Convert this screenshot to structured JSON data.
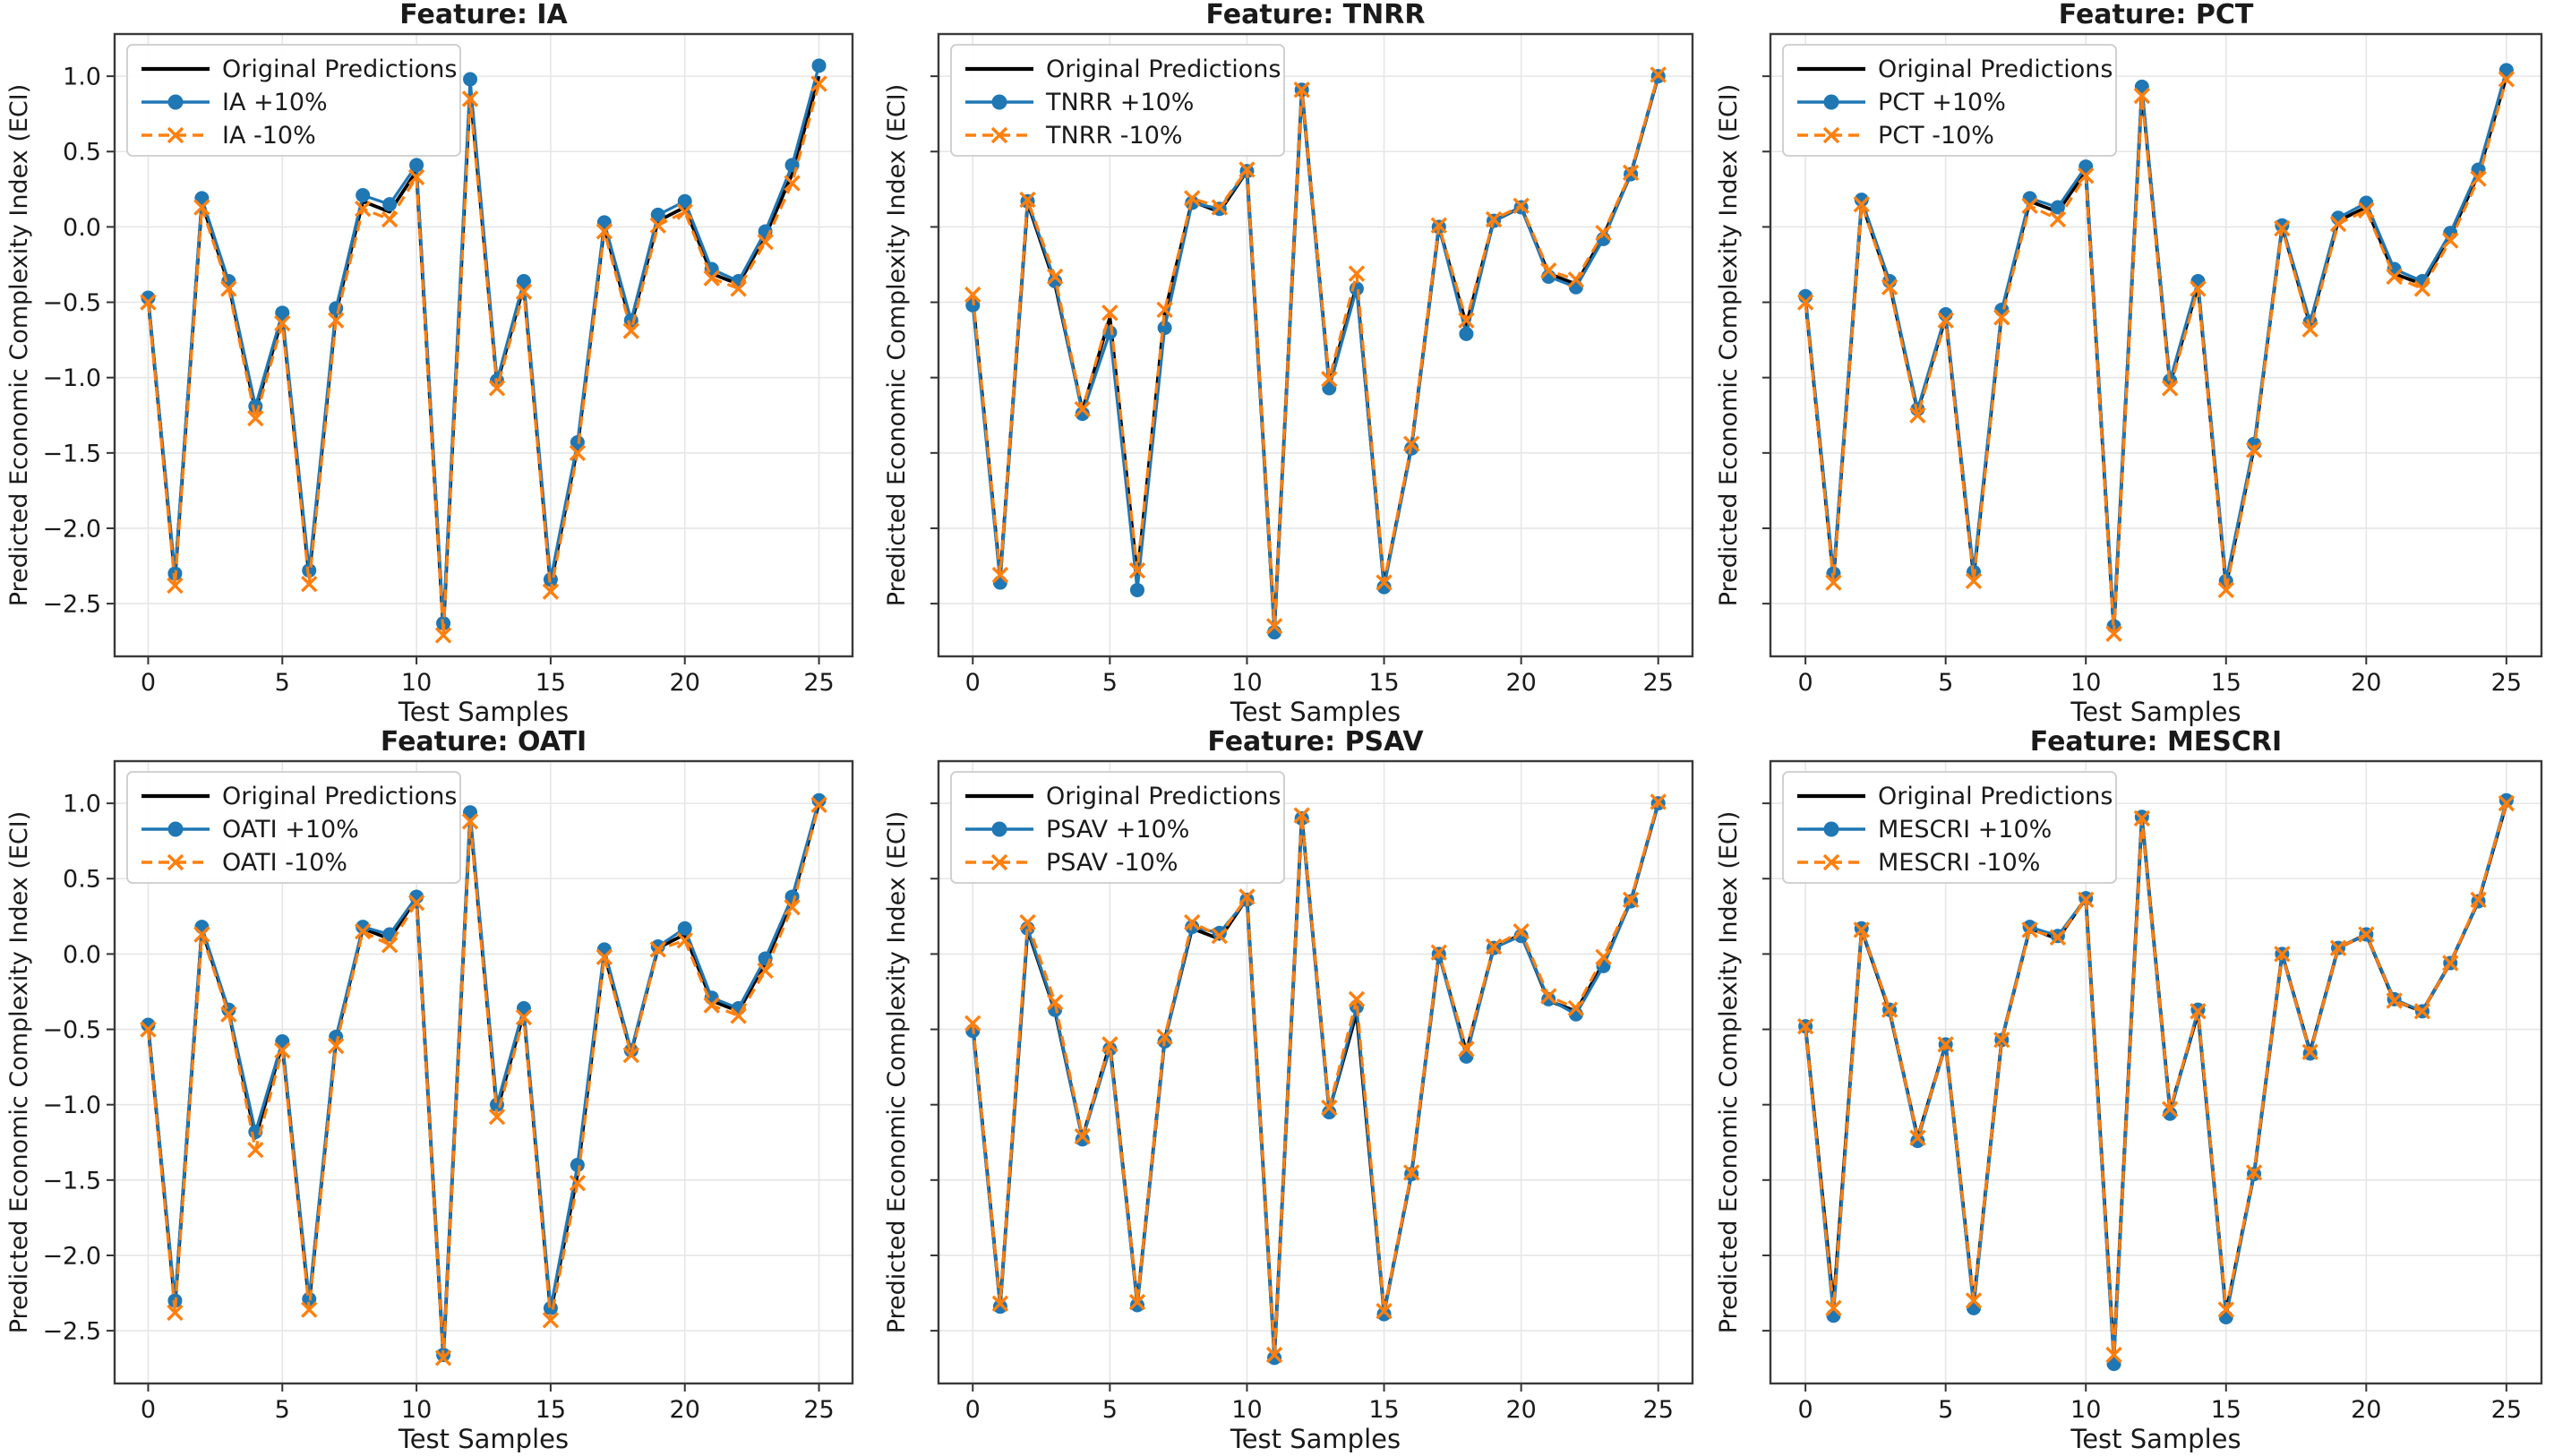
{
  "figure_title": "",
  "chart_data": [
    {
      "type": "line",
      "title": "Feature: IA",
      "xlabel": "Test Samples",
      "ylabel": "Predicted Economic Complexity Index (ECI)",
      "x": [
        0,
        1,
        2,
        3,
        4,
        5,
        6,
        7,
        8,
        9,
        10,
        11,
        12,
        13,
        14,
        15,
        16,
        17,
        18,
        19,
        20,
        21,
        22,
        23,
        24,
        25
      ],
      "xlim": [
        -1.25,
        26.25
      ],
      "ylim": [
        -2.85,
        1.28
      ],
      "xticks": [
        0,
        5,
        10,
        15,
        20,
        25
      ],
      "xtick_labels": [
        "0",
        "5",
        "10",
        "15",
        "20",
        "25"
      ],
      "yticks": [
        1.0,
        0.5,
        0.0,
        -0.5,
        -1.0,
        -1.5,
        -2.0,
        -2.5
      ],
      "ytick_labels": [
        "1.0",
        "0.5",
        "0.0",
        "−0.5",
        "−1.0",
        "−1.5",
        "−2.0",
        "−2.5"
      ],
      "show_ytick_labels": true,
      "grid": true,
      "legend_position": "upper left",
      "series": [
        {
          "name": "Original Predictions",
          "color": "#000000",
          "linestyle": "solid",
          "marker": "none",
          "values": [
            -0.48,
            -2.33,
            0.16,
            -0.38,
            -1.22,
            -0.6,
            -2.32,
            -0.57,
            0.17,
            0.1,
            0.37,
            -2.67,
            0.91,
            -1.04,
            -0.39,
            -2.38,
            -1.46,
            0.0,
            -0.65,
            0.04,
            0.13,
            -0.31,
            -0.38,
            -0.06,
            0.35,
            1.0
          ]
        },
        {
          "name": "IA +10%",
          "color": "#1f77b4",
          "linestyle": "solid",
          "marker": "circle",
          "values": [
            -0.47,
            -2.3,
            0.19,
            -0.36,
            -1.19,
            -0.57,
            -2.28,
            -0.54,
            0.21,
            0.15,
            0.41,
            -2.63,
            0.98,
            -1.02,
            -0.36,
            -2.34,
            -1.43,
            0.03,
            -0.62,
            0.08,
            0.17,
            -0.28,
            -0.36,
            -0.03,
            0.41,
            1.07
          ]
        },
        {
          "name": "IA -10%",
          "color": "#ff7f0e",
          "linestyle": "dashed",
          "marker": "x",
          "values": [
            -0.5,
            -2.38,
            0.13,
            -0.41,
            -1.27,
            -0.64,
            -2.37,
            -0.62,
            0.12,
            0.05,
            0.33,
            -2.71,
            0.85,
            -1.07,
            -0.43,
            -2.42,
            -1.5,
            -0.03,
            -0.69,
            0.01,
            0.1,
            -0.34,
            -0.41,
            -0.1,
            0.29,
            0.95
          ]
        }
      ]
    },
    {
      "type": "line",
      "title": "Feature: TNRR",
      "xlabel": "Test Samples",
      "ylabel": "Predicted Economic Complexity Index (ECI)",
      "x": [
        0,
        1,
        2,
        3,
        4,
        5,
        6,
        7,
        8,
        9,
        10,
        11,
        12,
        13,
        14,
        15,
        16,
        17,
        18,
        19,
        20,
        21,
        22,
        23,
        24,
        25
      ],
      "xlim": [
        -1.25,
        26.25
      ],
      "ylim": [
        -2.85,
        1.28
      ],
      "xticks": [
        0,
        5,
        10,
        15,
        20,
        25
      ],
      "xtick_labels": [
        "0",
        "5",
        "10",
        "15",
        "20",
        "25"
      ],
      "yticks": [
        1.0,
        0.5,
        0.0,
        -0.5,
        -1.0,
        -1.5,
        -2.0,
        -2.5
      ],
      "ytick_labels": [
        "1.0",
        "0.5",
        "0.0",
        "−0.5",
        "−1.0",
        "−1.5",
        "−2.0",
        "−2.5"
      ],
      "show_ytick_labels": false,
      "grid": true,
      "legend_position": "upper left",
      "series": [
        {
          "name": "Original Predictions",
          "color": "#000000",
          "linestyle": "solid",
          "marker": "none",
          "values": [
            -0.48,
            -2.33,
            0.16,
            -0.38,
            -1.22,
            -0.6,
            -2.32,
            -0.57,
            0.17,
            0.1,
            0.37,
            -2.67,
            0.91,
            -1.04,
            -0.39,
            -2.38,
            -1.46,
            0.0,
            -0.65,
            0.04,
            0.13,
            -0.31,
            -0.38,
            -0.06,
            0.35,
            1.0
          ]
        },
        {
          "name": "TNRR +10%",
          "color": "#1f77b4",
          "linestyle": "solid",
          "marker": "circle",
          "values": [
            -0.52,
            -2.36,
            0.17,
            -0.36,
            -1.24,
            -0.7,
            -2.41,
            -0.67,
            0.16,
            0.12,
            0.37,
            -2.69,
            0.91,
            -1.07,
            -0.41,
            -2.39,
            -1.47,
            0.0,
            -0.71,
            0.04,
            0.13,
            -0.33,
            -0.4,
            -0.08,
            0.35,
            1.0
          ]
        },
        {
          "name": "TNRR -10%",
          "color": "#ff7f0e",
          "linestyle": "dashed",
          "marker": "x",
          "values": [
            -0.45,
            -2.31,
            0.18,
            -0.33,
            -1.21,
            -0.57,
            -2.28,
            -0.55,
            0.19,
            0.13,
            0.38,
            -2.65,
            0.91,
            -1.01,
            -0.31,
            -2.36,
            -1.44,
            0.01,
            -0.62,
            0.05,
            0.14,
            -0.29,
            -0.35,
            -0.04,
            0.36,
            1.01
          ]
        }
      ]
    },
    {
      "type": "line",
      "title": "Feature: PCT",
      "xlabel": "Test Samples",
      "ylabel": "Predicted Economic Complexity Index (ECI)",
      "x": [
        0,
        1,
        2,
        3,
        4,
        5,
        6,
        7,
        8,
        9,
        10,
        11,
        12,
        13,
        14,
        15,
        16,
        17,
        18,
        19,
        20,
        21,
        22,
        23,
        24,
        25
      ],
      "xlim": [
        -1.25,
        26.25
      ],
      "ylim": [
        -2.85,
        1.28
      ],
      "xticks": [
        0,
        5,
        10,
        15,
        20,
        25
      ],
      "xtick_labels": [
        "0",
        "5",
        "10",
        "15",
        "20",
        "25"
      ],
      "yticks": [
        1.0,
        0.5,
        0.0,
        -0.5,
        -1.0,
        -1.5,
        -2.0,
        -2.5
      ],
      "ytick_labels": [
        "1.0",
        "0.5",
        "0.0",
        "−0.5",
        "−1.0",
        "−1.5",
        "−2.0",
        "−2.5"
      ],
      "show_ytick_labels": false,
      "grid": true,
      "legend_position": "upper left",
      "series": [
        {
          "name": "Original Predictions",
          "color": "#000000",
          "linestyle": "solid",
          "marker": "none",
          "values": [
            -0.48,
            -2.33,
            0.16,
            -0.38,
            -1.22,
            -0.6,
            -2.32,
            -0.57,
            0.17,
            0.1,
            0.37,
            -2.67,
            0.91,
            -1.04,
            -0.39,
            -2.38,
            -1.46,
            0.0,
            -0.65,
            0.04,
            0.13,
            -0.31,
            -0.38,
            -0.06,
            0.35,
            1.0
          ]
        },
        {
          "name": "PCT +10%",
          "color": "#1f77b4",
          "linestyle": "solid",
          "marker": "circle",
          "values": [
            -0.46,
            -2.3,
            0.18,
            -0.36,
            -1.21,
            -0.58,
            -2.29,
            -0.55,
            0.19,
            0.13,
            0.4,
            -2.65,
            0.93,
            -1.02,
            -0.36,
            -2.35,
            -1.44,
            0.01,
            -0.63,
            0.06,
            0.16,
            -0.28,
            -0.36,
            -0.04,
            0.38,
            1.04
          ]
        },
        {
          "name": "PCT -10%",
          "color": "#ff7f0e",
          "linestyle": "dashed",
          "marker": "x",
          "values": [
            -0.5,
            -2.36,
            0.15,
            -0.4,
            -1.25,
            -0.62,
            -2.35,
            -0.6,
            0.14,
            0.05,
            0.34,
            -2.7,
            0.87,
            -1.07,
            -0.41,
            -2.41,
            -1.48,
            -0.01,
            -0.68,
            0.02,
            0.11,
            -0.33,
            -0.41,
            -0.09,
            0.32,
            0.98
          ]
        }
      ]
    },
    {
      "type": "line",
      "title": "Feature: OATI",
      "xlabel": "Test Samples",
      "ylabel": "Predicted Economic Complexity Index (ECI)",
      "x": [
        0,
        1,
        2,
        3,
        4,
        5,
        6,
        7,
        8,
        9,
        10,
        11,
        12,
        13,
        14,
        15,
        16,
        17,
        18,
        19,
        20,
        21,
        22,
        23,
        24,
        25
      ],
      "xlim": [
        -1.25,
        26.25
      ],
      "ylim": [
        -2.85,
        1.28
      ],
      "xticks": [
        0,
        5,
        10,
        15,
        20,
        25
      ],
      "xtick_labels": [
        "0",
        "5",
        "10",
        "15",
        "20",
        "25"
      ],
      "yticks": [
        1.0,
        0.5,
        0.0,
        -0.5,
        -1.0,
        -1.5,
        -2.0,
        -2.5
      ],
      "ytick_labels": [
        "1.0",
        "0.5",
        "0.0",
        "−0.5",
        "−1.0",
        "−1.5",
        "−2.0",
        "−2.5"
      ],
      "show_ytick_labels": true,
      "grid": true,
      "legend_position": "upper left",
      "series": [
        {
          "name": "Original Predictions",
          "color": "#000000",
          "linestyle": "solid",
          "marker": "none",
          "values": [
            -0.48,
            -2.33,
            0.16,
            -0.38,
            -1.22,
            -0.6,
            -2.32,
            -0.57,
            0.17,
            0.1,
            0.37,
            -2.67,
            0.91,
            -1.04,
            -0.39,
            -2.38,
            -1.46,
            0.0,
            -0.65,
            0.04,
            0.13,
            -0.31,
            -0.38,
            -0.06,
            0.35,
            1.0
          ]
        },
        {
          "name": "OATI +10%",
          "color": "#1f77b4",
          "linestyle": "solid",
          "marker": "circle",
          "values": [
            -0.47,
            -2.3,
            0.18,
            -0.37,
            -1.18,
            -0.58,
            -2.29,
            -0.55,
            0.18,
            0.13,
            0.38,
            -2.66,
            0.94,
            -1.0,
            -0.36,
            -2.35,
            -1.4,
            0.03,
            -0.64,
            0.05,
            0.17,
            -0.29,
            -0.36,
            -0.03,
            0.38,
            1.02
          ]
        },
        {
          "name": "OATI -10%",
          "color": "#ff7f0e",
          "linestyle": "dashed",
          "marker": "x",
          "values": [
            -0.5,
            -2.38,
            0.13,
            -0.4,
            -1.3,
            -0.64,
            -2.36,
            -0.61,
            0.15,
            0.06,
            0.34,
            -2.68,
            0.88,
            -1.08,
            -0.42,
            -2.43,
            -1.52,
            -0.02,
            -0.67,
            0.03,
            0.09,
            -0.34,
            -0.41,
            -0.11,
            0.31,
            0.99
          ]
        }
      ]
    },
    {
      "type": "line",
      "title": "Feature: PSAV",
      "xlabel": "Test Samples",
      "ylabel": "Predicted Economic Complexity Index (ECI)",
      "x": [
        0,
        1,
        2,
        3,
        4,
        5,
        6,
        7,
        8,
        9,
        10,
        11,
        12,
        13,
        14,
        15,
        16,
        17,
        18,
        19,
        20,
        21,
        22,
        23,
        24,
        25
      ],
      "xlim": [
        -1.25,
        26.25
      ],
      "ylim": [
        -2.85,
        1.28
      ],
      "xticks": [
        0,
        5,
        10,
        15,
        20,
        25
      ],
      "xtick_labels": [
        "0",
        "5",
        "10",
        "15",
        "20",
        "25"
      ],
      "yticks": [
        1.0,
        0.5,
        0.0,
        -0.5,
        -1.0,
        -1.5,
        -2.0,
        -2.5
      ],
      "ytick_labels": [
        "1.0",
        "0.5",
        "0.0",
        "−0.5",
        "−1.0",
        "−1.5",
        "−2.0",
        "−2.5"
      ],
      "show_ytick_labels": false,
      "grid": true,
      "legend_position": "upper left",
      "series": [
        {
          "name": "Original Predictions",
          "color": "#000000",
          "linestyle": "solid",
          "marker": "none",
          "values": [
            -0.48,
            -2.33,
            0.16,
            -0.38,
            -1.22,
            -0.6,
            -2.32,
            -0.57,
            0.17,
            0.1,
            0.37,
            -2.67,
            0.91,
            -1.04,
            -0.39,
            -2.38,
            -1.46,
            0.0,
            -0.65,
            0.04,
            0.13,
            -0.31,
            -0.38,
            -0.06,
            0.35,
            1.0
          ]
        },
        {
          "name": "PSAV +10%",
          "color": "#1f77b4",
          "linestyle": "solid",
          "marker": "circle",
          "values": [
            -0.51,
            -2.34,
            0.17,
            -0.37,
            -1.23,
            -0.63,
            -2.33,
            -0.58,
            0.18,
            0.14,
            0.36,
            -2.68,
            0.9,
            -1.05,
            -0.35,
            -2.39,
            -1.46,
            0.0,
            -0.68,
            0.04,
            0.12,
            -0.3,
            -0.4,
            -0.08,
            0.35,
            1.0
          ]
        },
        {
          "name": "PSAV -10%",
          "color": "#ff7f0e",
          "linestyle": "dashed",
          "marker": "x",
          "values": [
            -0.46,
            -2.32,
            0.21,
            -0.32,
            -1.21,
            -0.6,
            -2.31,
            -0.55,
            0.21,
            0.12,
            0.38,
            -2.66,
            0.92,
            -1.02,
            -0.3,
            -2.37,
            -1.45,
            0.01,
            -0.63,
            0.05,
            0.15,
            -0.28,
            -0.36,
            -0.02,
            0.36,
            1.01
          ]
        }
      ]
    },
    {
      "type": "line",
      "title": "Feature: MESCRI",
      "xlabel": "Test Samples",
      "ylabel": "Predicted Economic Complexity Index (ECI)",
      "x": [
        0,
        1,
        2,
        3,
        4,
        5,
        6,
        7,
        8,
        9,
        10,
        11,
        12,
        13,
        14,
        15,
        16,
        17,
        18,
        19,
        20,
        21,
        22,
        23,
        24,
        25
      ],
      "xlim": [
        -1.25,
        26.25
      ],
      "ylim": [
        -2.85,
        1.28
      ],
      "xticks": [
        0,
        5,
        10,
        15,
        20,
        25
      ],
      "xtick_labels": [
        "0",
        "5",
        "10",
        "15",
        "20",
        "25"
      ],
      "yticks": [
        1.0,
        0.5,
        0.0,
        -0.5,
        -1.0,
        -1.5,
        -2.0,
        -2.5
      ],
      "ytick_labels": [
        "1.0",
        "0.5",
        "0.0",
        "−0.5",
        "−1.0",
        "−1.5",
        "−2.0",
        "−2.5"
      ],
      "show_ytick_labels": false,
      "grid": true,
      "legend_position": "upper left",
      "series": [
        {
          "name": "Original Predictions",
          "color": "#000000",
          "linestyle": "solid",
          "marker": "none",
          "values": [
            -0.48,
            -2.33,
            0.16,
            -0.38,
            -1.22,
            -0.6,
            -2.32,
            -0.57,
            0.17,
            0.1,
            0.37,
            -2.67,
            0.91,
            -1.04,
            -0.39,
            -2.38,
            -1.46,
            0.0,
            -0.65,
            0.04,
            0.13,
            -0.31,
            -0.38,
            -0.06,
            0.35,
            1.0
          ]
        },
        {
          "name": "MESCRI +10%",
          "color": "#1f77b4",
          "linestyle": "solid",
          "marker": "circle",
          "values": [
            -0.48,
            -2.4,
            0.17,
            -0.37,
            -1.24,
            -0.6,
            -2.35,
            -0.57,
            0.18,
            0.12,
            0.37,
            -2.72,
            0.91,
            -1.06,
            -0.37,
            -2.41,
            -1.46,
            0.0,
            -0.66,
            0.04,
            0.13,
            -0.3,
            -0.38,
            -0.06,
            0.35,
            1.02
          ]
        },
        {
          "name": "MESCRI -10%",
          "color": "#ff7f0e",
          "linestyle": "dashed",
          "marker": "x",
          "values": [
            -0.48,
            -2.35,
            0.16,
            -0.37,
            -1.22,
            -0.6,
            -2.3,
            -0.57,
            0.16,
            0.11,
            0.36,
            -2.66,
            0.9,
            -1.03,
            -0.38,
            -2.36,
            -1.45,
            0.0,
            -0.65,
            0.04,
            0.13,
            -0.31,
            -0.38,
            -0.06,
            0.36,
            1.0
          ]
        }
      ]
    }
  ],
  "style": {
    "grid_color": "#e6e6e6",
    "frame_color": "#3a3a3a",
    "tick_color": "#333333",
    "text_color": "#1a1a1a",
    "legend_border_color": "#cccccc",
    "background": "#ffffff"
  }
}
